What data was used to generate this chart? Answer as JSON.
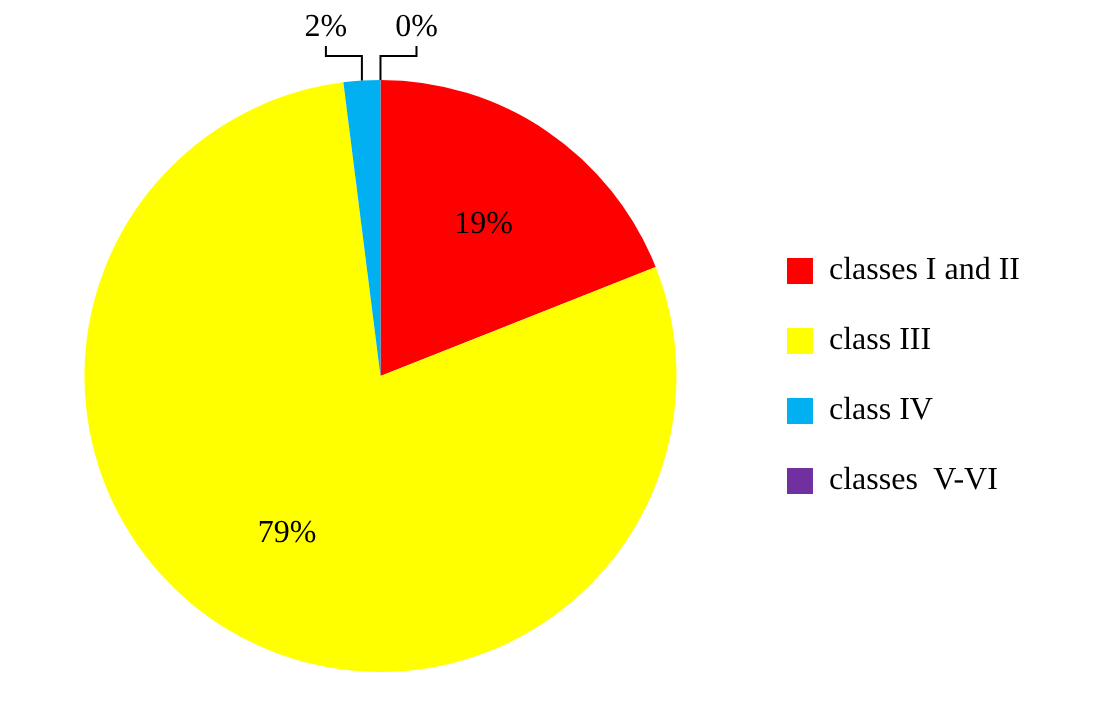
{
  "chart_data": {
    "type": "pie",
    "categories": [
      "classes I and II",
      "class III",
      "class IV",
      "classes  V-VI"
    ],
    "values": [
      19,
      79,
      2,
      0
    ],
    "colors": [
      "#ff0000",
      "#ffff00",
      "#00b0f0",
      "#7030a0"
    ],
    "value_labels": [
      "19%",
      "79%",
      "2%",
      "0%"
    ],
    "legend": "right"
  }
}
